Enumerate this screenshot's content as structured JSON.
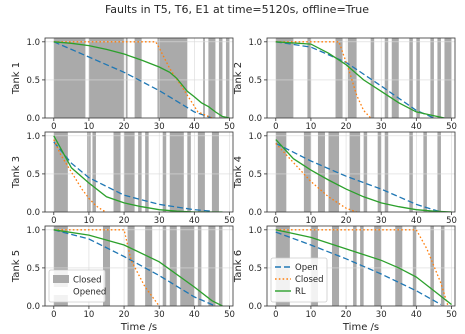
{
  "figure": {
    "title": "Faults in T5, T6, E1 at time=5120s, offline=True",
    "xlabel": "Time /s"
  },
  "colors": {
    "open": "#1f77b4",
    "closed": "#ff7f0e",
    "rl": "#2ca02c",
    "band": "#aaaaaa",
    "grid": "#d9d9d9"
  },
  "chart_data": [
    {
      "type": "line",
      "panel": "Tank 1",
      "ylabel": "Tank 1",
      "xlim": [
        -2.5,
        51
      ],
      "ylim": [
        0,
        1.05
      ],
      "xticks": [
        0,
        10,
        20,
        30,
        40,
        50
      ],
      "yticks": [
        0.0,
        0.5,
        1.0
      ],
      "bands": [
        [
          0,
          9
        ],
        [
          10,
          20
        ],
        [
          20.5,
          21
        ],
        [
          23,
          25
        ],
        [
          29.5,
          38
        ],
        [
          42.5,
          43
        ],
        [
          44,
          46
        ],
        [
          47,
          48
        ],
        [
          49,
          50
        ]
      ],
      "series": [
        {
          "key": "open",
          "style": "dashed",
          "x": [
            0,
            5,
            10,
            15,
            20,
            25,
            30,
            35,
            40,
            45
          ],
          "y": [
            1.0,
            0.9,
            0.8,
            0.7,
            0.6,
            0.48,
            0.36,
            0.22,
            0.08,
            0.0
          ]
        },
        {
          "key": "closed",
          "style": "dotted",
          "x": [
            0,
            20,
            29,
            30,
            33,
            38,
            41,
            45
          ],
          "y": [
            1.0,
            1.0,
            1.0,
            0.92,
            0.65,
            0.3,
            0.08,
            0.0
          ]
        },
        {
          "key": "rl",
          "style": "solid",
          "x": [
            0,
            5,
            10,
            15,
            20,
            25,
            30,
            33,
            35,
            38,
            40,
            42,
            44,
            46,
            48,
            50
          ],
          "y": [
            1.0,
            0.98,
            0.95,
            0.9,
            0.84,
            0.76,
            0.67,
            0.6,
            0.52,
            0.35,
            0.28,
            0.2,
            0.15,
            0.08,
            0.02,
            0.0
          ]
        }
      ]
    },
    {
      "type": "line",
      "panel": "Tank 2",
      "ylabel": "Tank 2",
      "xlim": [
        -2.5,
        51
      ],
      "ylim": [
        0,
        1.05
      ],
      "xticks": [
        0,
        10,
        20,
        30,
        40,
        50
      ],
      "yticks": [
        0.0,
        0.5,
        1.0
      ],
      "bands": [
        [
          0,
          5
        ],
        [
          9,
          10
        ],
        [
          17,
          19
        ],
        [
          20.5,
          23
        ],
        [
          27,
          28
        ],
        [
          31,
          32
        ],
        [
          33,
          35
        ],
        [
          38,
          39
        ],
        [
          40,
          41
        ],
        [
          44,
          45
        ],
        [
          46,
          47
        ],
        [
          48,
          50
        ]
      ],
      "series": [
        {
          "key": "open",
          "style": "dashed",
          "x": [
            0,
            10,
            20,
            30,
            40,
            45
          ],
          "y": [
            1.0,
            0.93,
            0.73,
            0.42,
            0.1,
            0.0
          ]
        },
        {
          "key": "closed",
          "style": "dotted",
          "x": [
            0,
            18,
            21,
            23,
            25,
            27
          ],
          "y": [
            1.0,
            1.0,
            0.6,
            0.3,
            0.1,
            0.0
          ]
        },
        {
          "key": "rl",
          "style": "solid",
          "x": [
            0,
            10,
            15,
            20,
            25,
            30,
            35,
            40,
            45,
            48
          ],
          "y": [
            1.0,
            0.97,
            0.85,
            0.7,
            0.5,
            0.35,
            0.2,
            0.08,
            0.03,
            0.0
          ]
        }
      ]
    },
    {
      "type": "line",
      "panel": "Tank 3",
      "ylabel": "Tank 3",
      "xlim": [
        -2.5,
        51
      ],
      "ylim": [
        0,
        1.05
      ],
      "xticks": [
        0,
        10,
        20,
        30,
        40,
        50
      ],
      "yticks": [
        0.0,
        0.5,
        1.0
      ],
      "bands": [
        [
          0,
          4
        ],
        [
          9.5,
          10.5
        ],
        [
          11,
          12
        ],
        [
          17,
          19
        ],
        [
          20,
          23
        ],
        [
          24,
          25
        ],
        [
          26,
          27
        ],
        [
          31,
          32
        ],
        [
          33,
          37
        ],
        [
          38,
          39
        ],
        [
          41,
          43
        ],
        [
          45,
          47
        ]
      ],
      "series": [
        {
          "key": "open",
          "style": "dashed",
          "x": [
            0,
            5,
            10,
            20,
            30,
            40,
            45
          ],
          "y": [
            0.92,
            0.64,
            0.45,
            0.22,
            0.1,
            0.03,
            0.01
          ]
        },
        {
          "key": "closed",
          "style": "dotted",
          "x": [
            0,
            2,
            4,
            6,
            8,
            10,
            12,
            14,
            15
          ],
          "y": [
            0.95,
            0.75,
            0.6,
            0.45,
            0.3,
            0.18,
            0.08,
            0.02,
            0.0
          ]
        },
        {
          "key": "rl",
          "style": "solid",
          "x": [
            0,
            5,
            10,
            15,
            20,
            25,
            30,
            35,
            40,
            45,
            48
          ],
          "y": [
            1.0,
            0.58,
            0.38,
            0.2,
            0.12,
            0.07,
            0.03,
            0.01,
            0.0,
            0.0,
            0.0
          ]
        }
      ]
    },
    {
      "type": "line",
      "panel": "Tank 4",
      "ylabel": "Tank 4",
      "xlim": [
        -2.5,
        51
      ],
      "ylim": [
        0,
        1.05
      ],
      "xticks": [
        0,
        10,
        20,
        30,
        40,
        50
      ],
      "yticks": [
        0.0,
        0.5,
        1.0
      ],
      "bands": [
        [
          0,
          3
        ],
        [
          8,
          10
        ],
        [
          12,
          14
        ],
        [
          15,
          18
        ],
        [
          21,
          24
        ],
        [
          25,
          26
        ],
        [
          29,
          30
        ],
        [
          31,
          32
        ],
        [
          38,
          39
        ],
        [
          42,
          43
        ],
        [
          46,
          47
        ]
      ],
      "series": [
        {
          "key": "open",
          "style": "dashed",
          "x": [
            0,
            10,
            20,
            30,
            40,
            47
          ],
          "y": [
            0.9,
            0.67,
            0.47,
            0.3,
            0.1,
            0.0
          ]
        },
        {
          "key": "closed",
          "style": "dotted",
          "x": [
            0,
            5,
            10,
            15,
            20,
            23
          ],
          "y": [
            0.9,
            0.65,
            0.4,
            0.2,
            0.05,
            0.0
          ]
        },
        {
          "key": "rl",
          "style": "solid",
          "x": [
            0,
            5,
            10,
            15,
            20,
            25,
            30,
            35,
            40,
            45,
            50
          ],
          "y": [
            0.95,
            0.7,
            0.55,
            0.42,
            0.3,
            0.2,
            0.12,
            0.07,
            0.03,
            0.01,
            0.0
          ]
        }
      ]
    },
    {
      "type": "line",
      "panel": "Tank 5",
      "ylabel": "Tank 5",
      "xlim": [
        -2.5,
        51
      ],
      "ylim": [
        0,
        1.05
      ],
      "xticks": [
        0,
        10,
        20,
        30,
        40,
        50
      ],
      "yticks": [
        0.0,
        0.5,
        1.0
      ],
      "bands": [
        [
          0,
          4
        ],
        [
          14,
          16
        ],
        [
          21,
          23
        ],
        [
          26,
          28
        ],
        [
          31,
          32
        ],
        [
          33,
          35
        ],
        [
          36,
          40
        ],
        [
          41,
          42
        ],
        [
          44,
          46
        ],
        [
          47,
          48
        ]
      ],
      "series": [
        {
          "key": "open",
          "style": "dashed",
          "x": [
            0,
            10,
            20,
            30,
            40,
            46
          ],
          "y": [
            1.0,
            0.88,
            0.65,
            0.4,
            0.12,
            0.0
          ]
        },
        {
          "key": "closed",
          "style": "dotted",
          "x": [
            0,
            20,
            22,
            26,
            30
          ],
          "y": [
            1.0,
            1.0,
            0.6,
            0.25,
            0.0
          ]
        },
        {
          "key": "rl",
          "style": "solid",
          "x": [
            0,
            10,
            20,
            30,
            40,
            45,
            48
          ],
          "y": [
            1.0,
            0.93,
            0.8,
            0.58,
            0.25,
            0.07,
            0.0
          ]
        }
      ]
    },
    {
      "type": "line",
      "panel": "Tank 6",
      "ylabel": "Tank 6",
      "xlim": [
        -2.5,
        51
      ],
      "ylim": [
        0,
        1.05
      ],
      "xticks": [
        0,
        10,
        20,
        30,
        40,
        50
      ],
      "yticks": [
        0.0,
        0.5,
        1.0
      ],
      "bands": [
        [
          0,
          4
        ],
        [
          10,
          12
        ],
        [
          16,
          18
        ],
        [
          22,
          23
        ],
        [
          24,
          25
        ],
        [
          28,
          30
        ],
        [
          34,
          36
        ],
        [
          39,
          40
        ],
        [
          44,
          45
        ],
        [
          47,
          48
        ]
      ],
      "series": [
        {
          "key": "open",
          "style": "dashed",
          "x": [
            0,
            10,
            20,
            30,
            40,
            47
          ],
          "y": [
            0.97,
            0.8,
            0.62,
            0.42,
            0.2,
            0.02
          ]
        },
        {
          "key": "closed",
          "style": "dotted",
          "x": [
            0,
            40,
            43,
            47,
            49
          ],
          "y": [
            1.0,
            1.0,
            0.75,
            0.3,
            0.0
          ]
        },
        {
          "key": "rl",
          "style": "solid",
          "x": [
            0,
            10,
            20,
            30,
            35,
            40,
            45,
            50
          ],
          "y": [
            1.0,
            0.9,
            0.75,
            0.6,
            0.5,
            0.38,
            0.2,
            0.02
          ]
        }
      ]
    }
  ],
  "legends": {
    "band_legend": {
      "panel_index": 4,
      "location": "lower-left",
      "entries": [
        {
          "label": "Closed",
          "swatch": "band"
        },
        {
          "label": "Opened",
          "swatch": "blank"
        }
      ]
    },
    "line_legend": {
      "panel_index": 5,
      "location": "lower-left",
      "entries": [
        {
          "label": "Open",
          "key": "open",
          "style": "dashed"
        },
        {
          "label": "Closed",
          "key": "closed",
          "style": "dotted"
        },
        {
          "label": "RL",
          "key": "rl",
          "style": "solid"
        }
      ]
    }
  }
}
